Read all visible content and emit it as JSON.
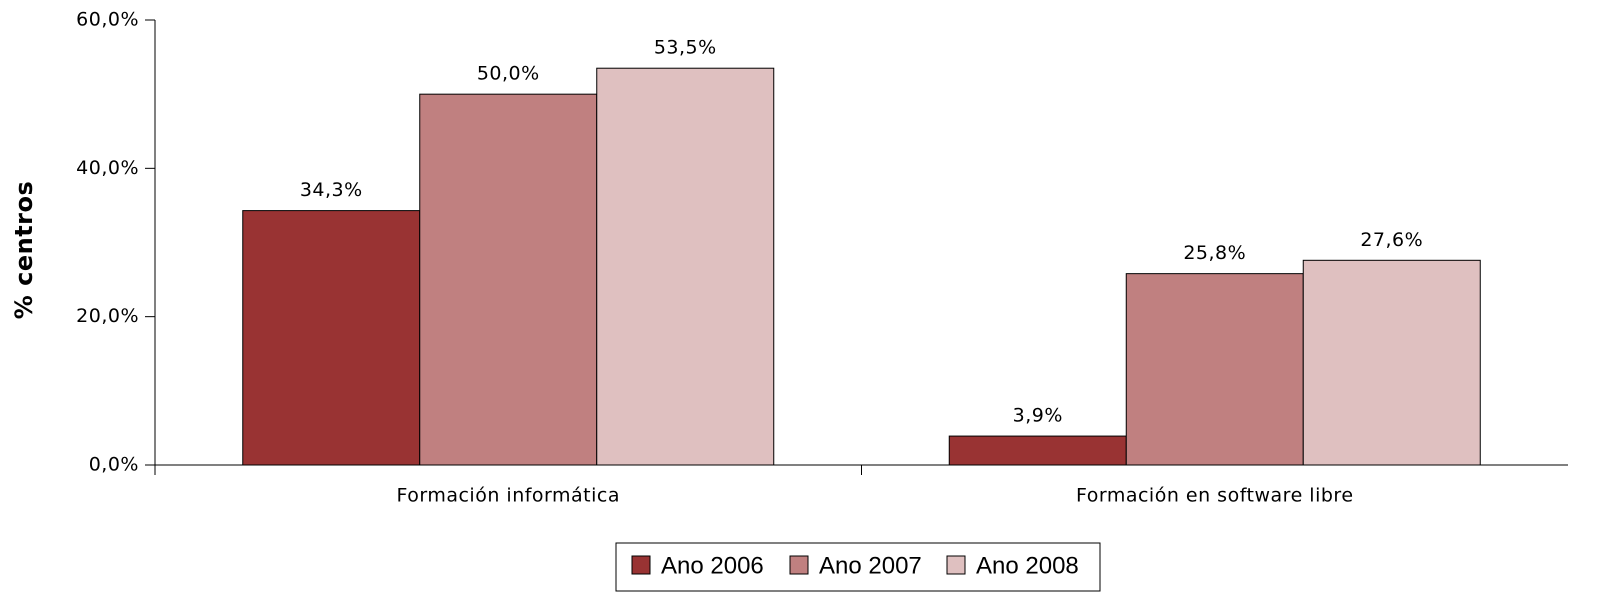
{
  "chart_data": {
    "type": "bar",
    "y_label": "% centros",
    "categories": [
      "Formación informática",
      "Formación en software libre"
    ],
    "series": [
      {
        "name": "Ano 2006",
        "color": "#993333",
        "values": [
          34.3,
          3.9
        ],
        "value_labels": [
          "34,3%",
          "3,9%"
        ]
      },
      {
        "name": "Ano 2007",
        "color": "#c08080",
        "values": [
          50.0,
          25.8
        ],
        "value_labels": [
          "50,0%",
          "25,8%"
        ]
      },
      {
        "name": "Ano 2008",
        "color": "#dfc0c0",
        "values": [
          53.5,
          27.6
        ],
        "value_labels": [
          "53,5%",
          "27,6%"
        ]
      }
    ],
    "ylim": [
      0,
      60
    ],
    "yticks": [
      {
        "value": 0,
        "label": "0,0%"
      },
      {
        "value": 20,
        "label": "20,0%"
      },
      {
        "value": 40,
        "label": "40,0%"
      },
      {
        "value": 60,
        "label": "60,0%"
      }
    ],
    "grid": false,
    "legend": "bottom"
  }
}
